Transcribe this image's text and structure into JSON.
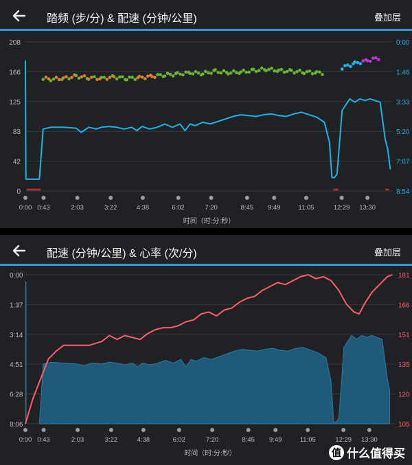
{
  "panel1": {
    "title": "踏频 (步/分) & 配速 (分钟/公里)",
    "overlay_label": "叠加层",
    "xlabel": "时间（时:分:秒）"
  },
  "panel2": {
    "title": "配速 (分钟/公里) & 心率 (次/分)",
    "overlay_label": "叠加层",
    "xlabel": "时间（时:分:秒）"
  },
  "watermark": {
    "text": "什么值得买",
    "badge": "值"
  },
  "colors": {
    "accent": "#2a9fd6",
    "pace": "#1bb4e9",
    "hr": "#ff5c6c",
    "zero": "#c0283c"
  },
  "chart_data": [
    {
      "type": "line",
      "x_ticks": [
        "0:00",
        "0:43",
        "2:03",
        "3:22",
        "4:38",
        "6:02",
        "7:20",
        "8:45",
        "9:49",
        "11:05",
        "12:29",
        "13:30"
      ],
      "y_left_ticks": [
        "208",
        "166",
        "125",
        "83",
        "42",
        "0"
      ],
      "y_right_ticks": [
        "0:00",
        "1:46",
        "3:33",
        "5:20",
        "7:07",
        "8:54"
      ],
      "xlabel": "时间（时:分:秒）",
      "series": [
        {
          "axis": "right",
          "x": [
            0,
            0.02,
            0.05,
            0.35,
            0.55,
            0.7,
            1.0,
            1.5,
            2.0,
            2.2,
            2.5,
            2.8,
            3.0,
            3.3,
            3.6,
            3.9,
            4.2,
            4.4,
            4.6,
            4.9,
            5.2,
            5.5,
            5.8,
            6.1,
            6.3,
            6.5,
            6.7,
            7.0,
            7.3,
            7.6,
            7.9,
            8.2,
            8.5,
            8.8,
            9.1,
            9.4,
            9.7,
            10.0,
            10.3,
            10.6,
            10.9,
            11.2,
            11.5,
            11.8,
            12.0,
            12.1,
            12.2,
            12.3,
            12.5,
            12.8,
            13.0,
            13.2,
            13.4,
            13.6,
            13.8,
            14.0,
            14.2,
            14.3,
            14.4
          ],
          "y": [
            1.12,
            8.2,
            8.2,
            8.2,
            8.2,
            5.2,
            5.1,
            5.1,
            5.15,
            5.4,
            5.1,
            5.2,
            5.1,
            5.05,
            5.1,
            5.2,
            5.1,
            5.3,
            5.05,
            5.2,
            5.1,
            4.9,
            5.1,
            4.9,
            5.3,
            4.9,
            5.0,
            4.8,
            4.9,
            4.75,
            4.6,
            4.45,
            4.35,
            4.4,
            4.45,
            4.35,
            4.3,
            4.4,
            4.45,
            4.3,
            4.2,
            4.35,
            4.5,
            4.8,
            6.0,
            8.1,
            8.1,
            7.9,
            4.1,
            3.4,
            3.6,
            3.4,
            3.5,
            3.4,
            3.5,
            3.6,
            5.8,
            6.4,
            7.6
          ]
        },
        {
          "axis": "left",
          "x": [
            0.7,
            1.0,
            1.5,
            2.0,
            2.5,
            3.0,
            3.5,
            4.0,
            4.5,
            5.0,
            5.5,
            6.0,
            6.5,
            7.0,
            7.5,
            8.0,
            8.5,
            9.0,
            9.5,
            10.0,
            10.5,
            11.0,
            11.5,
            12.0,
            12.5,
            13.0,
            13.5,
            14.0
          ],
          "y": [
            157,
            156,
            157,
            160,
            158,
            157,
            159,
            157,
            158,
            160,
            162,
            163,
            165,
            164,
            167,
            165,
            166,
            168,
            170,
            168,
            167,
            166,
            165,
            164,
            172,
            178,
            182,
            186
          ]
        }
      ]
    },
    {
      "type": "area",
      "x_ticks": [
        "0:00",
        "0:43",
        "2:03",
        "3:22",
        "4:38",
        "6:02",
        "7:20",
        "8:45",
        "9:49",
        "11:05",
        "12:29",
        "13:30"
      ],
      "y_left_ticks": [
        "0:00",
        "1:37",
        "3:14",
        "4:51",
        "6:28",
        "8:06"
      ],
      "y_right_ticks": [
        "181",
        "166",
        "151",
        "135",
        "120",
        "105"
      ],
      "xlabel": "时间（时:分:秒）",
      "series": [
        {
          "axis": "left",
          "x": [
            0.55,
            0.7,
            1.0,
            1.5,
            2.0,
            2.3,
            2.6,
            3.0,
            3.3,
            3.6,
            3.9,
            4.2,
            4.4,
            4.6,
            4.9,
            5.2,
            5.5,
            5.8,
            6.1,
            6.3,
            6.5,
            6.7,
            7.0,
            7.3,
            7.6,
            7.9,
            8.2,
            8.5,
            8.8,
            9.1,
            9.4,
            9.7,
            10.0,
            10.3,
            10.6,
            10.9,
            11.2,
            11.5,
            11.8,
            12.0,
            12.1,
            12.2,
            12.3,
            12.5,
            12.8,
            13.0,
            13.2,
            13.4,
            13.6,
            13.8,
            14.0,
            14.2,
            14.3
          ],
          "y": [
            8.06,
            4.85,
            4.75,
            4.8,
            4.85,
            4.95,
            4.8,
            4.85,
            4.75,
            4.8,
            4.9,
            4.8,
            5.0,
            4.8,
            4.9,
            4.8,
            4.65,
            4.8,
            4.6,
            5.0,
            4.6,
            4.7,
            4.5,
            4.6,
            4.45,
            4.3,
            4.15,
            4.05,
            4.1,
            4.15,
            4.05,
            4.0,
            4.1,
            4.15,
            4.0,
            3.95,
            4.1,
            4.25,
            4.5,
            5.8,
            8.0,
            8.0,
            7.8,
            3.95,
            3.3,
            3.5,
            3.3,
            3.4,
            3.3,
            3.4,
            3.5,
            5.6,
            6.3
          ]
        },
        {
          "axis": "right",
          "x": [
            0,
            0.3,
            0.6,
            0.9,
            1.2,
            1.5,
            2.0,
            2.5,
            3.0,
            3.3,
            3.6,
            3.9,
            4.2,
            4.5,
            4.8,
            5.1,
            5.4,
            5.7,
            6.0,
            6.3,
            6.6,
            6.9,
            7.2,
            7.5,
            7.8,
            8.1,
            8.4,
            8.7,
            9.0,
            9.3,
            9.6,
            9.9,
            10.2,
            10.5,
            10.8,
            11.1,
            11.4,
            11.7,
            12.0,
            12.3,
            12.6,
            12.9,
            13.1,
            13.3,
            13.6,
            13.9,
            14.2,
            14.4
          ],
          "y": [
            105,
            118,
            128,
            138,
            142,
            145,
            145,
            145,
            147,
            150,
            148,
            150,
            149,
            148,
            151,
            153,
            154,
            154,
            155,
            157,
            158,
            161,
            162,
            160,
            163,
            164,
            167,
            169,
            170,
            173,
            175,
            177,
            176,
            178,
            180,
            181,
            179,
            180,
            178,
            173,
            166,
            162,
            161,
            166,
            172,
            176,
            180,
            181
          ]
        }
      ]
    }
  ]
}
